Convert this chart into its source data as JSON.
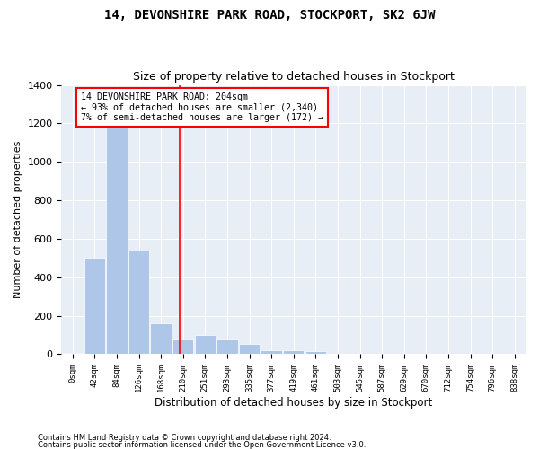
{
  "title": "14, DEVONSHIRE PARK ROAD, STOCKPORT, SK2 6JW",
  "subtitle": "Size of property relative to detached houses in Stockport",
  "xlabel": "Distribution of detached houses by size in Stockport",
  "ylabel": "Number of detached properties",
  "footnote1": "Contains HM Land Registry data © Crown copyright and database right 2024.",
  "footnote2": "Contains public sector information licensed under the Open Government Licence v3.0.",
  "bar_labels": [
    "0sqm",
    "42sqm",
    "84sqm",
    "126sqm",
    "168sqm",
    "210sqm",
    "251sqm",
    "293sqm",
    "335sqm",
    "377sqm",
    "419sqm",
    "461sqm",
    "503sqm",
    "545sqm",
    "587sqm",
    "629sqm",
    "670sqm",
    "712sqm",
    "754sqm",
    "796sqm",
    "838sqm"
  ],
  "bar_values": [
    5,
    500,
    1250,
    540,
    160,
    75,
    100,
    75,
    55,
    20,
    20,
    15,
    3,
    0,
    0,
    0,
    0,
    0,
    0,
    0,
    0
  ],
  "bar_color": "#aec6e8",
  "background_color": "#e8eef5",
  "annotation_text": "14 DEVONSHIRE PARK ROAD: 204sqm\n← 93% of detached houses are smaller (2,340)\n7% of semi-detached houses are larger (172) →",
  "property_line_x": 4.86,
  "ylim": [
    0,
    1400
  ],
  "yticks": [
    0,
    200,
    400,
    600,
    800,
    1000,
    1200,
    1400
  ],
  "fig_width": 6.0,
  "fig_height": 5.0,
  "dpi": 100
}
